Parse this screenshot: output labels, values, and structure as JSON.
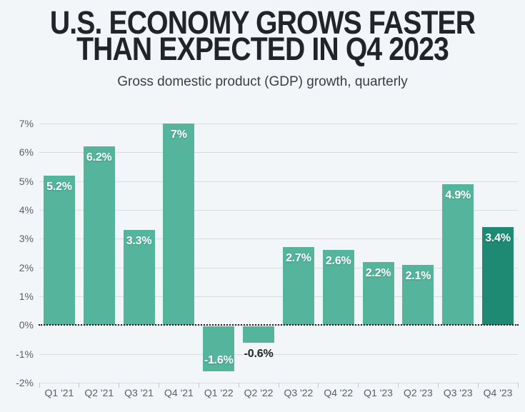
{
  "header": {
    "title_lines": [
      "U.S. ECONOMY GROWS FASTER",
      "THAN EXPECTED IN Q4 2023"
    ],
    "subtitle": "Gross domestic product (GDP) growth, quarterly"
  },
  "chart_data": {
    "type": "bar",
    "title": "U.S. ECONOMY GROWS FASTER THAN EXPECTED IN Q4 2023",
    "subtitle": "Gross domestic product (GDP) growth, quarterly",
    "categories": [
      "Q1 '21",
      "Q2 '21",
      "Q3 '21",
      "Q4 '21",
      "Q1 '22",
      "Q2 '22",
      "Q3 '22",
      "Q4 '22",
      "Q1 '23",
      "Q2 '23",
      "Q3 '23",
      "Q4 '23"
    ],
    "values": [
      5.2,
      6.2,
      3.3,
      7,
      -1.6,
      -0.6,
      2.7,
      2.6,
      2.2,
      2.1,
      4.9,
      3.4
    ],
    "labels": [
      "5.2%",
      "6.2%",
      "3.3%",
      "7%",
      "-1.6%",
      "-0.6%",
      "2.7%",
      "2.6%",
      "2.2%",
      "2.1%",
      "4.9%",
      "3.4%"
    ],
    "xlabel": "",
    "ylabel": "",
    "ylim": [
      -2,
      7
    ],
    "ytick_step": 1,
    "ytick_suffix": "%",
    "grid": true,
    "legend_position": "none",
    "zero_line_style": "dotted",
    "bar_color": "#55b49c",
    "highlight_index": 11,
    "highlight_color": "#1e8a73",
    "inside_label_color": "#ffffff",
    "outside_label_color": "#222427",
    "axis_text_color": "#5b6065",
    "gridline_color": "#d8dde1",
    "background_color": "#f3f6f8"
  }
}
